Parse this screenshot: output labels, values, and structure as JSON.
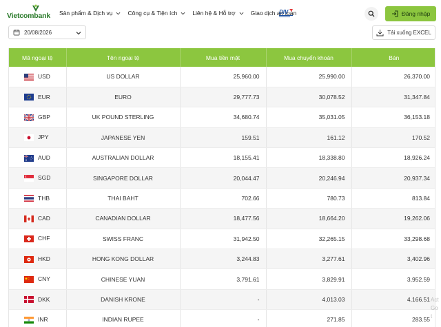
{
  "header": {
    "logo_text": "Vietcombank",
    "nav": [
      {
        "label": "Sản phẩm & Dịch vụ",
        "has_dropdown": true
      },
      {
        "label": "Công cụ & Tiện ích",
        "has_dropdown": true
      },
      {
        "label": "Liên hệ & Hỗ trợ",
        "has_dropdown": true
      },
      {
        "label": "Giao dịch an toàn",
        "has_dropdown": false
      }
    ],
    "badge_text": "DIV",
    "search_icon": "search-icon",
    "login_label": "Đăng nhập",
    "accent_color": "#8cc63f"
  },
  "controls": {
    "date_value": "20/08/2026",
    "excel_label": "Tải xuống EXCEL"
  },
  "table": {
    "columns": [
      "Mã ngoại tệ",
      "Tên ngoại tệ",
      "Mua tiền mặt",
      "Mua chuyển khoản",
      "Bán"
    ],
    "rows": [
      {
        "code": "USD",
        "name": "US DOLLAR",
        "cash": "25,960.00",
        "transfer": "25,990.00",
        "sell": "26,370.00"
      },
      {
        "code": "EUR",
        "name": "EURO",
        "cash": "29,777.73",
        "transfer": "30,078.52",
        "sell": "31,347.84"
      },
      {
        "code": "GBP",
        "name": "UK POUND STERLING",
        "cash": "34,680.74",
        "transfer": "35,031.05",
        "sell": "36,153.18"
      },
      {
        "code": "JPY",
        "name": "JAPANESE YEN",
        "cash": "159.51",
        "transfer": "161.12",
        "sell": "170.52"
      },
      {
        "code": "AUD",
        "name": "AUSTRALIAN DOLLAR",
        "cash": "18,155.41",
        "transfer": "18,338.80",
        "sell": "18,926.24"
      },
      {
        "code": "SGD",
        "name": "SINGAPORE DOLLAR",
        "cash": "20,044.47",
        "transfer": "20,246.94",
        "sell": "20,937.34"
      },
      {
        "code": "THB",
        "name": "THAI BAHT",
        "cash": "702.66",
        "transfer": "780.73",
        "sell": "813.84"
      },
      {
        "code": "CAD",
        "name": "CANADIAN DOLLAR",
        "cash": "18,477.56",
        "transfer": "18,664.20",
        "sell": "19,262.06"
      },
      {
        "code": "CHF",
        "name": "SWISS FRANC",
        "cash": "31,942.50",
        "transfer": "32,265.15",
        "sell": "33,298.68"
      },
      {
        "code": "HKD",
        "name": "HONG KONG DOLLAR",
        "cash": "3,244.83",
        "transfer": "3,277.61",
        "sell": "3,402.96"
      },
      {
        "code": "CNY",
        "name": "CHINESE YUAN",
        "cash": "3,791.61",
        "transfer": "3,829.91",
        "sell": "3,952.59"
      },
      {
        "code": "DKK",
        "name": "DANISH KRONE",
        "cash": "-",
        "transfer": "4,013.03",
        "sell": "4,166.51"
      },
      {
        "code": "INR",
        "name": "INDIAN RUPEE",
        "cash": "-",
        "transfer": "271.85",
        "sell": "283.55"
      }
    ]
  },
  "watermark": {
    "line1": "Act",
    "line2": "Go t"
  }
}
